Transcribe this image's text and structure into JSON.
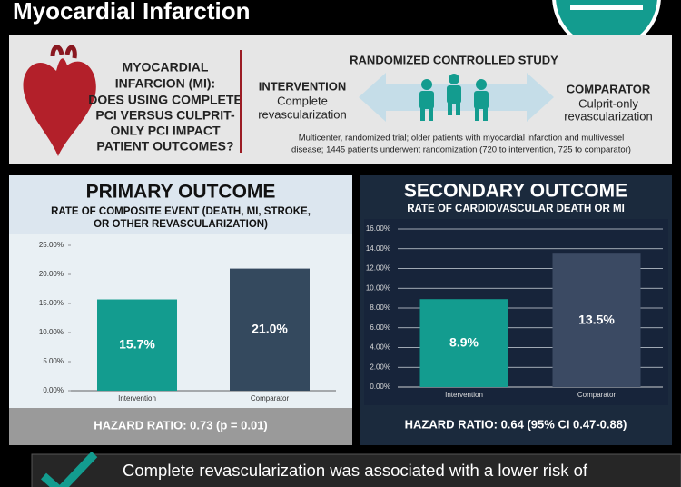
{
  "header": {
    "title": "Myocardial Infarction"
  },
  "question": [
    "MYOCARDIAL",
    "INFARCION (MI):",
    "DOES USING COMPLETE",
    "PCI VERSUS CULPRIT-",
    "ONLY PCI IMPACT",
    "PATIENT OUTCOMES?"
  ],
  "study": {
    "heading": "RANDOMIZED CONTROLLED STUDY",
    "intervention": {
      "heading": "INTERVENTION",
      "lines": [
        "Complete",
        "revascularization"
      ]
    },
    "comparator": {
      "heading": "COMPARATOR",
      "lines": [
        "Culprit-only",
        "revascularization"
      ]
    },
    "description": [
      "Multicenter, randomized trial; older patients with myocardial infarction and multivessel",
      "disease; 1445 patients underwent randomization (720 to intervention, 725 to comparator)"
    ]
  },
  "chart_data": [
    {
      "type": "bar",
      "title": "PRIMARY OUTCOME",
      "subtitle": [
        "RATE OF COMPOSITE EVENT (DEATH, MI, STROKE,",
        "OR OTHER REVASCULARIZATION)"
      ],
      "categories": [
        "Intervention",
        "Comparator"
      ],
      "values": [
        15.7,
        21.0
      ],
      "value_labels": [
        "15.7%",
        "21.0%"
      ],
      "colors": [
        "#139c8f",
        "#34495e"
      ],
      "ylim": [
        0,
        25
      ],
      "yticks": [
        {
          "value": 0,
          "label": "0.00%"
        },
        {
          "value": 5,
          "label": "5.00%"
        },
        {
          "value": 10,
          "label": "10.00%"
        },
        {
          "value": 15,
          "label": "15.00%"
        },
        {
          "value": 20,
          "label": "20.00%"
        },
        {
          "value": 25,
          "label": "25.00%"
        }
      ],
      "grid": false,
      "footer": "HAZARD RATIO: 0.73 (p = 0.01)"
    },
    {
      "type": "bar",
      "title": "SECONDARY OUTCOME",
      "subtitle": [
        "RATE OF CARDIOVASCULAR DEATH OR MI"
      ],
      "categories": [
        "Intervention",
        "Comparator"
      ],
      "values": [
        8.9,
        13.5
      ],
      "value_labels": [
        "8.9%",
        "13.5%"
      ],
      "colors": [
        "#139c8f",
        "#3b4a63"
      ],
      "ylim": [
        0,
        16
      ],
      "yticks": [
        {
          "value": 0,
          "label": "0.00%"
        },
        {
          "value": 2,
          "label": "2.00%"
        },
        {
          "value": 4,
          "label": "4.00%"
        },
        {
          "value": 6,
          "label": "6.00%"
        },
        {
          "value": 8,
          "label": "8.00%"
        },
        {
          "value": 10,
          "label": "10.00%"
        },
        {
          "value": 12,
          "label": "12.00%"
        },
        {
          "value": 14,
          "label": "14.00%"
        },
        {
          "value": 16,
          "label": "16.00%"
        }
      ],
      "grid": true,
      "footer": "HAZARD RATIO: 0.64 (95% CI 0.47-0.88)"
    }
  ],
  "conclusion": "Complete revascularization was associated with a lower risk of"
}
